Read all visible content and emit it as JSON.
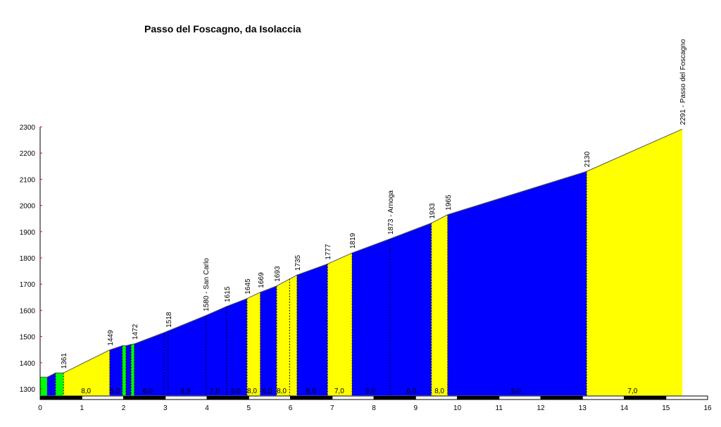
{
  "chart_data": {
    "type": "area",
    "title": "Passo del Foscagno, da Isolaccia",
    "xlabel": "",
    "ylabel": "",
    "xlim": [
      0,
      16
    ],
    "ylim": [
      1300,
      2300
    ],
    "x_ticks": [
      "0",
      "1",
      "2",
      "3",
      "4",
      "5",
      "6",
      "7",
      "8",
      "9",
      "10",
      "11",
      "12",
      "13",
      "14",
      "15",
      "16"
    ],
    "y_ticks": [
      "1300",
      "1400",
      "1500",
      "1600",
      "1700",
      "1800",
      "1900",
      "2000",
      "2100",
      "2200",
      "2300"
    ],
    "colors": {
      "green": "#00ff00",
      "blue": "#0000ff",
      "yellow": "#ffff00"
    },
    "profile": [
      {
        "km": 0,
        "elev": 1345
      },
      {
        "km": 0.17,
        "elev": 1345
      },
      {
        "km": 0.37,
        "elev": 1361
      },
      {
        "km": 0.56,
        "elev": 1361
      },
      {
        "km": 1.67,
        "elev": 1449
      },
      {
        "km": 1.97,
        "elev": 1465
      },
      {
        "km": 2.06,
        "elev": 1465
      },
      {
        "km": 2.18,
        "elev": 1470
      },
      {
        "km": 2.26,
        "elev": 1472
      },
      {
        "km": 2.97,
        "elev": 1515
      },
      {
        "km": 3.97,
        "elev": 1580
      },
      {
        "km": 4.47,
        "elev": 1615
      },
      {
        "km": 4.96,
        "elev": 1645
      },
      {
        "km": 5.28,
        "elev": 1669
      },
      {
        "km": 5.67,
        "elev": 1693
      },
      {
        "km": 6.16,
        "elev": 1735
      },
      {
        "km": 6.89,
        "elev": 1777
      },
      {
        "km": 7.48,
        "elev": 1819
      },
      {
        "km": 8.39,
        "elev": 1873
      },
      {
        "km": 9.38,
        "elev": 1933
      },
      {
        "km": 9.77,
        "elev": 1965
      },
      {
        "km": 13.1,
        "elev": 2130
      },
      {
        "km": 15.39,
        "elev": 2291
      }
    ],
    "segment_colors": [
      "green",
      "blue",
      "green",
      "yellow",
      "blue",
      "green",
      "blue",
      "green",
      "blue",
      "blue",
      "blue",
      "blue",
      "yellow",
      "blue",
      "yellow",
      "blue",
      "yellow",
      "blue",
      "blue",
      "yellow",
      "blue",
      "yellow"
    ],
    "dashed_markers_km": [
      0.37,
      0.56,
      1.67,
      1.97,
      2.06,
      2.18,
      2.26,
      2.97,
      3.07,
      3.97,
      4.47,
      4.96,
      5.28,
      5.67,
      5.98,
      6.16,
      6.89,
      7.48,
      8.39,
      9.38,
      9.77,
      13.1
    ],
    "elevation_labels": [
      {
        "km": 0.56,
        "elev": 1361,
        "text": "1361"
      },
      {
        "km": 1.67,
        "elev": 1449,
        "text": "1449"
      },
      {
        "km": 2.26,
        "elev": 1472,
        "text": "1472"
      },
      {
        "km": 3.07,
        "elev": 1518,
        "text": "1518"
      },
      {
        "km": 3.97,
        "elev": 1580,
        "text": "1580 - San Carlo"
      },
      {
        "km": 4.47,
        "elev": 1615,
        "text": "1615"
      },
      {
        "km": 4.96,
        "elev": 1645,
        "text": "1645"
      },
      {
        "km": 5.28,
        "elev": 1669,
        "text": "1669"
      },
      {
        "km": 5.67,
        "elev": 1693,
        "text": "1693"
      },
      {
        "km": 6.16,
        "elev": 1735,
        "text": "1735"
      },
      {
        "km": 6.89,
        "elev": 1777,
        "text": "1777"
      },
      {
        "km": 7.48,
        "elev": 1819,
        "text": "1819"
      },
      {
        "km": 8.39,
        "elev": 1873,
        "text": "1873 - Arnoga"
      },
      {
        "km": 9.38,
        "elev": 1933,
        "text": "1933"
      },
      {
        "km": 9.77,
        "elev": 1965,
        "text": "1965"
      },
      {
        "km": 13.1,
        "elev": 2130,
        "text": "2130"
      },
      {
        "km": 15.39,
        "elev": 2291,
        "text": "2291 - Passo del Foscagno"
      }
    ],
    "gradient_labels": [
      {
        "km": 1.1,
        "text": "8,0"
      },
      {
        "km": 1.79,
        "text": "5,0"
      },
      {
        "km": 2.58,
        "text": "6,0"
      },
      {
        "km": 3.48,
        "text": "6,9"
      },
      {
        "km": 4.19,
        "text": "7,0"
      },
      {
        "km": 4.69,
        "text": "6,0"
      },
      {
        "km": 5.08,
        "text": "8,0"
      },
      {
        "km": 5.44,
        "text": "6,0"
      },
      {
        "km": 5.79,
        "text": "8,0"
      },
      {
        "km": 6.5,
        "text": "6,0"
      },
      {
        "km": 7.17,
        "text": "7,0"
      },
      {
        "km": 7.92,
        "text": "6,0"
      },
      {
        "km": 8.9,
        "text": "6,0"
      },
      {
        "km": 9.57,
        "text": "8,0"
      },
      {
        "km": 11.4,
        "text": "5,0"
      },
      {
        "km": 14.2,
        "text": "7,0"
      }
    ]
  }
}
